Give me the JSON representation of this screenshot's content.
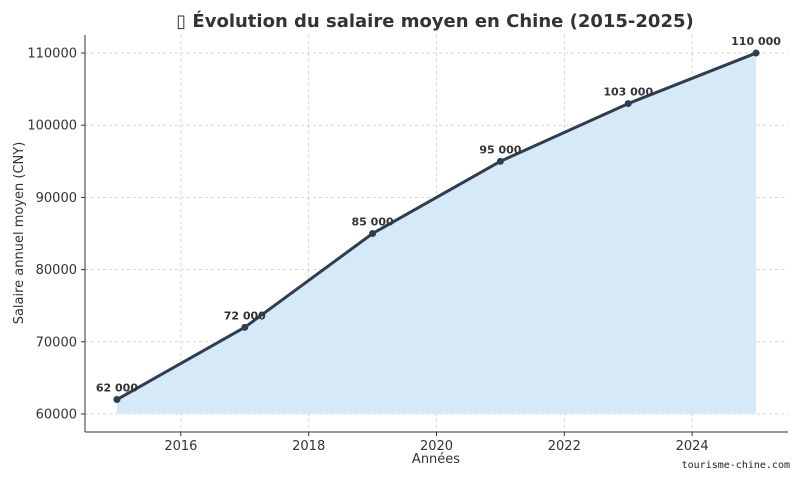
{
  "chart_data": {
    "type": "area",
    "title": "Évolution du salaire moyen en Chine (2015-2025)",
    "title_icon": "box-glyph-icon",
    "xlabel": "Années",
    "ylabel": "Salaire annuel moyen (CNY)",
    "x": [
      2015,
      2017,
      2019,
      2021,
      2023,
      2025
    ],
    "series": [
      {
        "values": [
          62000,
          72000,
          85000,
          95000,
          103000,
          110000
        ],
        "labels": [
          "62 000",
          "72 000",
          "85 000",
          "95 000",
          "103 000",
          "110 000"
        ]
      }
    ],
    "xlim": [
      2014.5,
      2025.5
    ],
    "ylim": [
      57500,
      112500
    ],
    "xticks": [
      2016,
      2018,
      2020,
      2022,
      2024
    ],
    "yticks": [
      60000,
      70000,
      80000,
      90000,
      100000,
      110000
    ],
    "grid": true,
    "line_color": "#2e3e50",
    "fill_color": "#d6e9f7"
  },
  "watermark": "tourisme-chine.com"
}
